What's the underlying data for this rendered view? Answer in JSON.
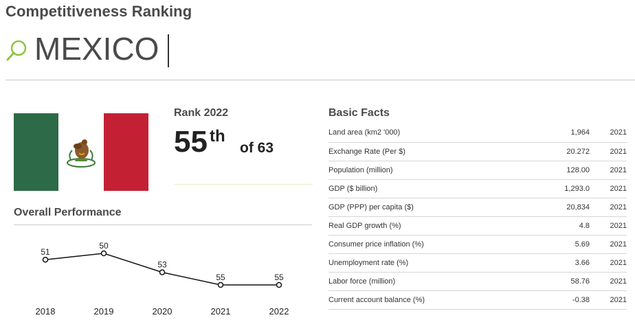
{
  "page_title": "Competitiveness Ranking",
  "search": {
    "value": "MEXICO",
    "icon": "search-icon",
    "accent": "#8dc63f"
  },
  "flag": {
    "colors": {
      "green": "#2d6a47",
      "white": "#ffffff",
      "red": "#c42034"
    }
  },
  "rank": {
    "label": "Rank 2022",
    "value": "55",
    "suffix": "th",
    "of": "of 63"
  },
  "performance": {
    "title": "Overall Performance"
  },
  "chart_data": {
    "type": "line",
    "categories": [
      "2018",
      "2019",
      "2020",
      "2021",
      "2022"
    ],
    "values": [
      51,
      50,
      53,
      55,
      55
    ],
    "series": [
      {
        "values": [
          51,
          50,
          53,
          55,
          55
        ]
      }
    ],
    "inverted_y": true,
    "ylim": [
      49,
      56
    ],
    "grid": false
  },
  "basic_facts": {
    "title": "Basic Facts",
    "rows": [
      {
        "name": "Land area (km2 '000)",
        "value": "1,964",
        "year": "2021"
      },
      {
        "name": "Exchange Rate (Per $)",
        "value": "20.272",
        "year": "2021"
      },
      {
        "name": "Population (million)",
        "value": "128.00",
        "year": "2021"
      },
      {
        "name": "GDP ($ billion)",
        "value": "1,293.0",
        "year": "2021"
      },
      {
        "name": "GDP (PPP) per capita ($)",
        "value": "20,834",
        "year": "2021"
      },
      {
        "name": "Real GDP growth (%)",
        "value": "4.8",
        "year": "2021"
      },
      {
        "name": "Consumer price inflation (%)",
        "value": "5.69",
        "year": "2021"
      },
      {
        "name": "Unemployment rate (%)",
        "value": "3.66",
        "year": "2021"
      },
      {
        "name": "Labor force (million)",
        "value": "58.76",
        "year": "2021"
      },
      {
        "name": "Current account balance (%)",
        "value": "-0.38",
        "year": "2021"
      }
    ]
  }
}
